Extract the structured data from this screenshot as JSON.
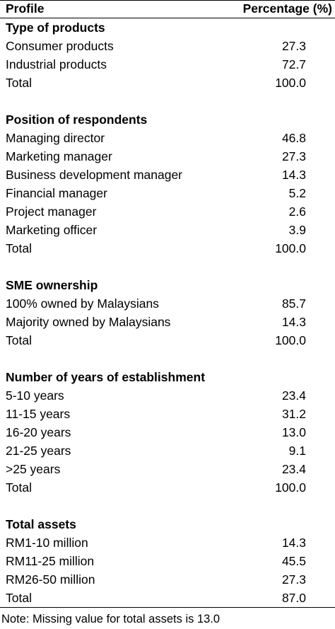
{
  "header": {
    "profile_label": "Profile",
    "percentage_label": "Percentage (%)"
  },
  "sections": [
    {
      "title": "Type of products",
      "rows": [
        {
          "label": "Consumer products",
          "value": "27.3"
        },
        {
          "label": "Industrial products",
          "value": "72.7"
        },
        {
          "label": "Total",
          "value": "100.0"
        }
      ]
    },
    {
      "title": "Position of respondents",
      "rows": [
        {
          "label": "Managing director",
          "value": "46.8"
        },
        {
          "label": "Marketing manager",
          "value": "27.3"
        },
        {
          "label": "Business development manager",
          "value": "14.3"
        },
        {
          "label": "Financial manager",
          "value": "5.2"
        },
        {
          "label": "Project manager",
          "value": "2.6"
        },
        {
          "label": "Marketing officer",
          "value": "3.9"
        },
        {
          "label": "Total",
          "value": "100.0"
        }
      ]
    },
    {
      "title": "SME ownership",
      "rows": [
        {
          "label": "100% owned by Malaysians",
          "value": "85.7"
        },
        {
          "label": "Majority owned by Malaysians",
          "value": "14.3"
        },
        {
          "label": "Total",
          "value": "100.0"
        }
      ]
    },
    {
      "title": "Number of years of establishment",
      "rows": [
        {
          "label": "5-10 years",
          "value": "23.4"
        },
        {
          "label": "11-15 years",
          "value": "31.2"
        },
        {
          "label": "16-20 years",
          "value": "13.0"
        },
        {
          "label": "21-25 years",
          "value": "9.1"
        },
        {
          "label": ">25 years",
          "value": "23.4"
        },
        {
          "label": "Total",
          "value": "100.0"
        }
      ]
    },
    {
      "title": "Total assets",
      "rows": [
        {
          "label": "RM1-10 million",
          "value": "14.3"
        },
        {
          "label": "RM11-25 million",
          "value": "45.5"
        },
        {
          "label": "RM26-50 million",
          "value": "27.3"
        },
        {
          "label": "Total",
          "value": "87.0"
        }
      ]
    }
  ],
  "note": "Note: Missing value for total assets is 13.0"
}
